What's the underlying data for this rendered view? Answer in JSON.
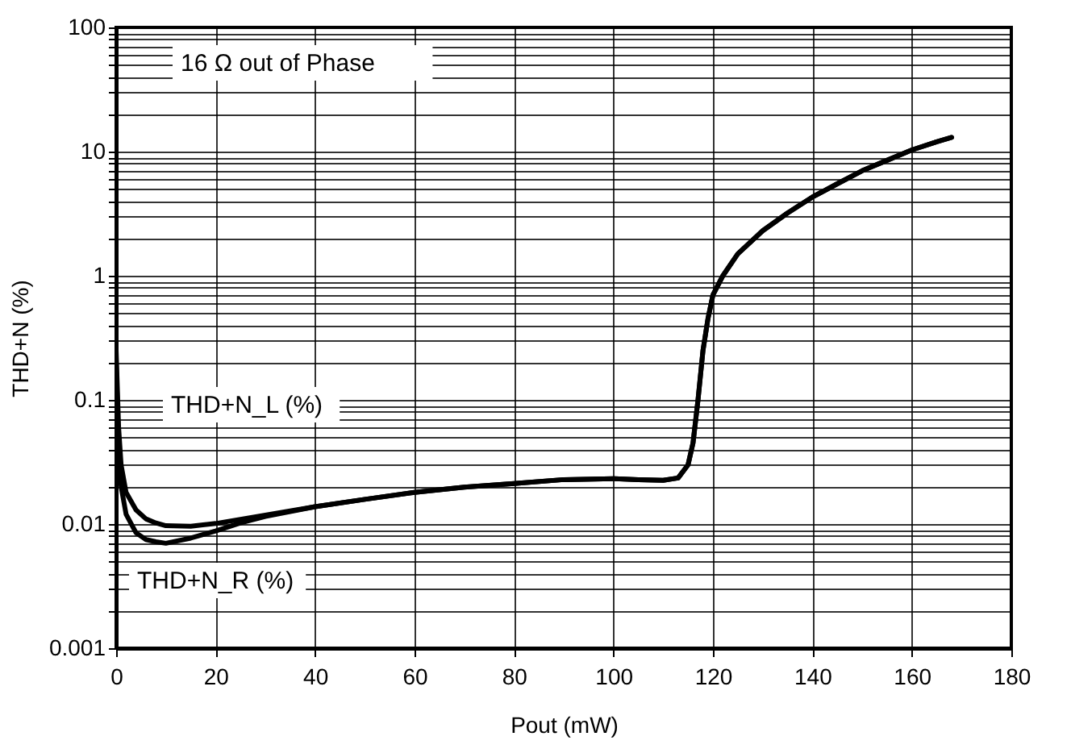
{
  "chart_data": {
    "type": "line",
    "xlabel": "Pout (mW)",
    "ylabel": "THD+N (%)",
    "log": "y",
    "grid": true,
    "marker": "none",
    "line_style": "solid",
    "xlim": [
      0,
      180
    ],
    "xticks": [
      0,
      20,
      40,
      60,
      80,
      100,
      120,
      140,
      160,
      180
    ],
    "ylim": [
      0.001,
      100
    ],
    "yticks": [
      0.001,
      {
        "value": 0.002,
        "label": null
      },
      {
        "value": 0.003,
        "label": null
      },
      {
        "value": 0.004,
        "label": null
      },
      {
        "value": 0.005,
        "label": null
      },
      {
        "value": 0.006,
        "label": null
      },
      {
        "value": 0.007,
        "label": null
      },
      {
        "value": 0.008,
        "label": null
      },
      {
        "value": 0.009,
        "label": null
      },
      0.01,
      {
        "value": 0.02,
        "label": null
      },
      {
        "value": 0.03,
        "label": null
      },
      {
        "value": 0.04,
        "label": null
      },
      {
        "value": 0.05,
        "label": null
      },
      {
        "value": 0.06,
        "label": null
      },
      {
        "value": 0.07,
        "label": null
      },
      {
        "value": 0.08,
        "label": null
      },
      {
        "value": 0.09,
        "label": null
      },
      0.1,
      {
        "value": 0.2,
        "label": null
      },
      {
        "value": 0.3,
        "label": null
      },
      {
        "value": 0.4,
        "label": null
      },
      {
        "value": 0.5,
        "label": null
      },
      {
        "value": 0.6,
        "label": null
      },
      {
        "value": 0.7,
        "label": null
      },
      {
        "value": 0.8,
        "label": null
      },
      {
        "value": 0.9,
        "label": null
      },
      1,
      {
        "value": 2,
        "label": null
      },
      {
        "value": 3,
        "label": null
      },
      {
        "value": 4,
        "label": null
      },
      {
        "value": 5,
        "label": null
      },
      {
        "value": 6,
        "label": null
      },
      {
        "value": 7,
        "label": null
      },
      {
        "value": 8,
        "label": null
      },
      {
        "value": 9,
        "label": null
      },
      10,
      {
        "value": 20,
        "label": null
      },
      {
        "value": 30,
        "label": null
      },
      {
        "value": 40,
        "label": null
      },
      {
        "value": 50,
        "label": null
      },
      {
        "value": 60,
        "label": null
      },
      {
        "value": 70,
        "label": null
      },
      {
        "value": 80,
        "label": null
      },
      {
        "value": 90,
        "label": null
      },
      100
    ],
    "series": [
      {
        "color": "#000000",
        "x": [
          0,
          0.5,
          1,
          2,
          4,
          6,
          8,
          10,
          15,
          20,
          30,
          40,
          50,
          60,
          70,
          80,
          90,
          100,
          105,
          110,
          113,
          115,
          116,
          117,
          118,
          119,
          120,
          122,
          125,
          130,
          135,
          140,
          145,
          150,
          155,
          160,
          165,
          168
        ],
        "values": [
          0.25,
          0.06,
          0.03,
          0.018,
          0.013,
          0.011,
          0.0102,
          0.0097,
          0.0096,
          0.0101,
          0.0118,
          0.0138,
          0.0158,
          0.018,
          0.0198,
          0.0212,
          0.0228,
          0.0232,
          0.0228,
          0.0225,
          0.0235,
          0.03,
          0.045,
          0.1,
          0.25,
          0.45,
          0.7,
          1.0,
          1.5,
          2.3,
          3.2,
          4.3,
          5.5,
          7,
          8.5,
          10.3,
          12,
          13
        ]
      },
      {
        "color": "#000000",
        "x": [
          0,
          0.5,
          1,
          2,
          4,
          6,
          8,
          10,
          15,
          20,
          25,
          30,
          40,
          50,
          60,
          70,
          80,
          90,
          100,
          105,
          110,
          113,
          115,
          116,
          117,
          118,
          119,
          120,
          122,
          125,
          130,
          135,
          140,
          145,
          150,
          155,
          160,
          165,
          168
        ],
        "values": [
          0.2,
          0.04,
          0.02,
          0.012,
          0.0085,
          0.0075,
          0.0072,
          0.007,
          0.0077,
          0.0088,
          0.0102,
          0.0115,
          0.0138,
          0.0158,
          0.018,
          0.0198,
          0.0212,
          0.0228,
          0.0232,
          0.0228,
          0.0225,
          0.0235,
          0.03,
          0.045,
          0.1,
          0.25,
          0.45,
          0.7,
          1.0,
          1.5,
          2.3,
          3.2,
          4.3,
          5.5,
          7,
          8.5,
          10.3,
          12,
          13
        ]
      }
    ],
    "annotations": [
      "16 Ω out of Phase",
      "THD+N_L (%)",
      "THD+N_R (%)"
    ]
  }
}
